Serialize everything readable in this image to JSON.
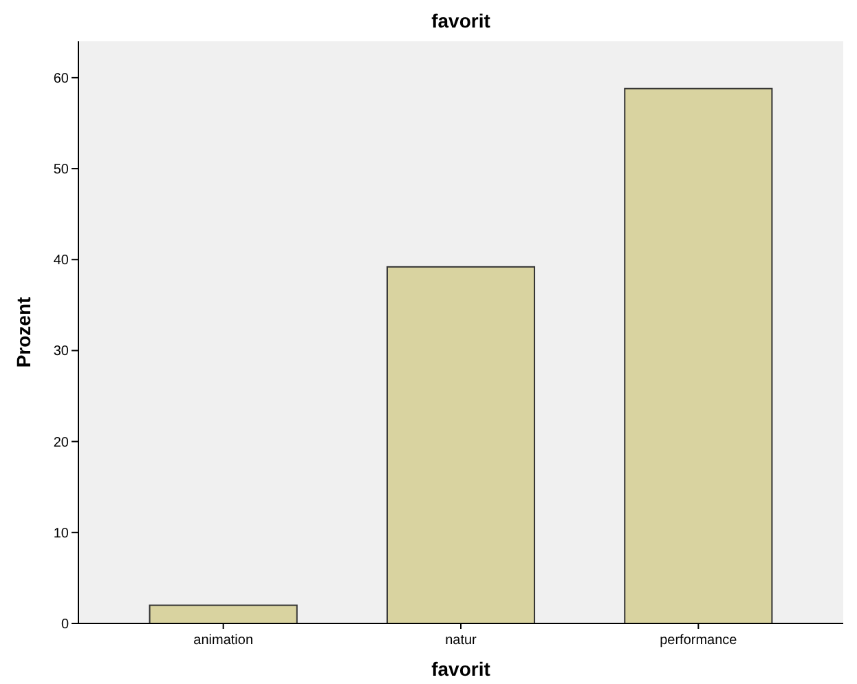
{
  "chart_data": {
    "type": "bar",
    "title": "favorit",
    "xlabel": "favorit",
    "ylabel": "Prozent",
    "categories": [
      "animation",
      "natur",
      "performance"
    ],
    "values": [
      2.0,
      39.2,
      58.8
    ],
    "color": "#d9d3a0",
    "ylim": [
      0,
      64
    ],
    "yticks": [
      0,
      10,
      20,
      30,
      40,
      50,
      60
    ],
    "grid": false
  }
}
